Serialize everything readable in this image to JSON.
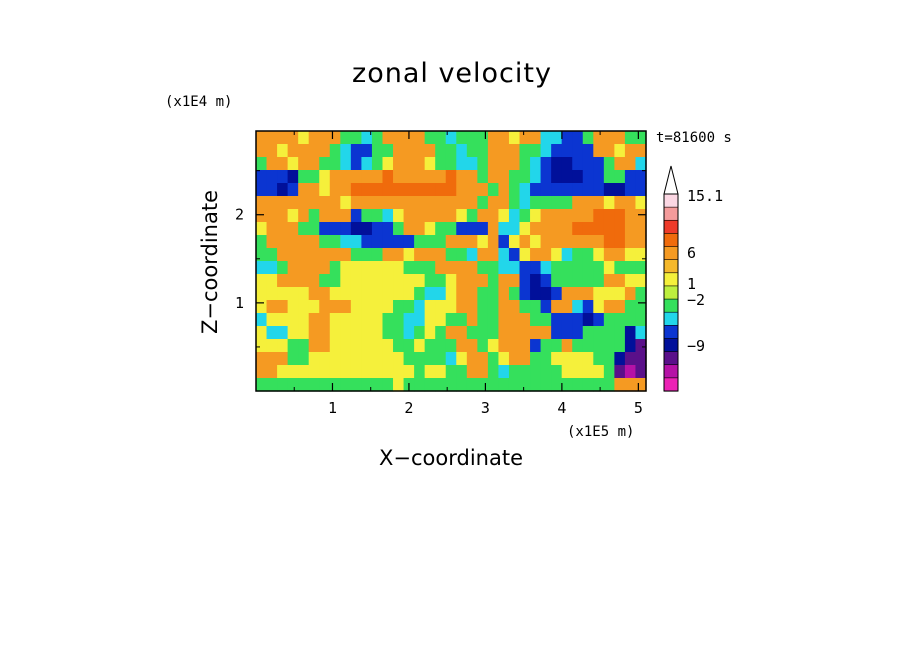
{
  "chart_data": {
    "type": "heatmap",
    "title": "zonal velocity",
    "xlabel": "X−coordinate",
    "ylabel": "Z−coordinate",
    "x_scale_label": "(x1E5 m)",
    "y_scale_label": "(x1E4 m)",
    "time_label": "t=81600 s",
    "xlim": [
      0,
      5.1
    ],
    "ylim": [
      0,
      2.95
    ],
    "x_ticks": [
      "1",
      "2",
      "3",
      "4",
      "5"
    ],
    "x_tick_values": [
      1,
      2,
      3,
      4,
      5
    ],
    "y_ticks": [
      "1",
      "2"
    ],
    "y_tick_values": [
      1,
      2
    ],
    "colorbar": {
      "labels": [
        "15.1",
        "6",
        "1",
        "−2",
        "−9"
      ],
      "label_values": [
        15.1,
        6,
        1,
        -2,
        -9
      ],
      "levels_top_to_bottom": [
        {
          "color": "#fbd7e3"
        },
        {
          "color": "#f49b9b"
        },
        {
          "color": "#ee3b2a"
        },
        {
          "color": "#f06b0c"
        },
        {
          "color": "#f59a22"
        },
        {
          "color": "#f5b82b"
        },
        {
          "color": "#f5f03b"
        },
        {
          "color": "#bdef3e"
        },
        {
          "color": "#35e05c"
        },
        {
          "color": "#22d6ea"
        },
        {
          "color": "#0b35d1"
        },
        {
          "color": "#01109a"
        },
        {
          "color": "#5a108a"
        },
        {
          "color": "#b512a6"
        },
        {
          "color": "#ec22b5"
        }
      ]
    },
    "field_grid": {
      "description_rows_top_to_bottom": "z from 2.95 to 0, x from 0 to 5.1",
      "legend": {
        "O": "#f59a22",
        "R": "#f06b0c",
        "Y": "#f5f03b",
        "G": "#35e05c",
        "C": "#22d6ea",
        "B": "#0b35d1",
        "N": "#01109a",
        "P": "#5a108a",
        "M": "#b512a6"
      },
      "rows": [
        "OOOOYOOOGGCGOOOOGGCGGGOOYOOCCBBGOOOGG",
        "OOYOOOOGCBBGGOOOOGGCGGOOOGGCBBBBOOYOO",
        "GOOYOOGGCBCGYOOOYGGCCGOOOGCBNNBBBGOOC",
        "BBBNGGYOOOOOROOOOOROOGOOGGCBNNNBBGGBB",
        "BBNBOOYOORRRRRRRRRROOOGOGCBBBBBBBNNBB",
        "OOOOOOOOYOOOOOOOOOOOOGOOGCGGGGOOOYOOY",
        "OOOYOGOOOBGGCYOOOOOYGOOYCGYOOOOORRROO",
        "YOOOGGBBBNNBBGOOYGGBBBOCCYOOOORRRRROO",
        "GOOOOOGGCCBBBBBGGGOOOYOBYOYOOOOOORROO",
        "GGOOOOOOOGGGOOYOOOGGCOOCBYOOYCGGYOOYY",
        "CCGOOOOGYYYYYYGGGOOOOGGCCBBCGGGGGYGGG",
        "YYOOOOGGYYYYYYYYGGYOOOGOOBNBGGGGGOOYY",
        "YYYYYOOYYYYYYYYGCCYOOGGOGBNNBOOOYYYOG",
        "YOOYYYOOOYYYYGGCYYYOOGGOOGGBOOCBYOOGG",
        "CYYYYOOYYYYYGGCCYYGGOGGOOOGGBBBNBGGGG",
        "YCCYYOOYYYYYGGCGYGOOGGGOOOOOBBBGGGGNC",
        "YYYGGOOYYYYYYGGYGGGOOGYOOOBGGOGGGGGNP",
        "OOOGGYYYYYYYYYGGGGCYOOGYOOGGYYYYGGNPP",
        "OOYYYYYYYYYYYYYGYYGGOOGCGGGGGYYYYGPMP",
        "GGGGGGGGGGGGGYGGGGGGGGGGGGGGGGGGGGOOO"
      ]
    }
  }
}
